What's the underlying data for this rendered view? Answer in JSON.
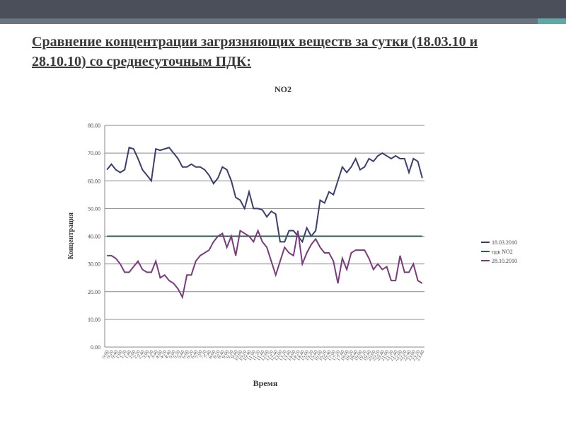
{
  "slide_title": "Сравнение концентрации загрязняющих веществ за сутки (18.03.10 и 28.10.10) со среднесуточным ПДК:",
  "chart_data": {
    "type": "line",
    "title": "NO2",
    "x_label": "Время",
    "y_label": "Концентрация",
    "categories": [
      "0:00",
      "0:20",
      "0:40",
      "1:00",
      "1:20",
      "1:40",
      "2:00",
      "2:20",
      "2:40",
      "3:00",
      "3:20",
      "3:40",
      "4:00",
      "4:20",
      "4:40",
      "5:00",
      "5:20",
      "5:40",
      "6:00",
      "6:20",
      "6:40",
      "7:00",
      "7:20",
      "7:40",
      "8:00",
      "8:20",
      "8:40",
      "9:00",
      "9:20",
      "9:40",
      "10:00",
      "10:20",
      "10:40",
      "11:00",
      "11:20",
      "11:40",
      "12:00",
      "12:20",
      "12:40",
      "13:00",
      "13:20",
      "13:40",
      "14:00",
      "14:20",
      "14:40",
      "15:00",
      "15:20",
      "15:40",
      "16:00",
      "16:20",
      "16:40",
      "17:00",
      "17:20",
      "17:40",
      "18:00",
      "18:20",
      "18:40",
      "19:00",
      "19:20",
      "19:40",
      "20:00",
      "20:20",
      "20:40",
      "21:00",
      "21:20",
      "21:40",
      "22:00",
      "22:20",
      "22:40",
      "23:00",
      "23:20",
      "23:40"
    ],
    "series": [
      {
        "name": "18.03.2010",
        "color": "#3b3f6e",
        "values": [
          64,
          66,
          64,
          63,
          64,
          72,
          71.5,
          68,
          64,
          62,
          60,
          71.5,
          71,
          71.5,
          72,
          70,
          68,
          65,
          65,
          66,
          65,
          65,
          64,
          62,
          59,
          61,
          65,
          64,
          60,
          54,
          53,
          50,
          56,
          50,
          50,
          49.5,
          47,
          49,
          48,
          38,
          38,
          42,
          42,
          40,
          38,
          43,
          40,
          42,
          53,
          52,
          56,
          55,
          60,
          65,
          63,
          65,
          68,
          64,
          65,
          68,
          67,
          69,
          70,
          69,
          68,
          69,
          68,
          68,
          63,
          68,
          67,
          61
        ]
      },
      {
        "name": "пдк NO2",
        "color": "#2f5d5a",
        "values": [
          40,
          40,
          40,
          40,
          40,
          40,
          40,
          40,
          40,
          40,
          40,
          40,
          40,
          40,
          40,
          40,
          40,
          40,
          40,
          40,
          40,
          40,
          40,
          40,
          40,
          40,
          40,
          40,
          40,
          40,
          40,
          40,
          40,
          40,
          40,
          40,
          40,
          40,
          40,
          40,
          40,
          40,
          40,
          40,
          40,
          40,
          40,
          40,
          40,
          40,
          40,
          40,
          40,
          40,
          40,
          40,
          40,
          40,
          40,
          40,
          40,
          40,
          40,
          40,
          40,
          40,
          40,
          40,
          40,
          40,
          40,
          40
        ]
      },
      {
        "name": "28.10.2010",
        "color": "#7b3b7e",
        "values": [
          33,
          33,
          32,
          30,
          27,
          27,
          29,
          31,
          28,
          27,
          27,
          31,
          25,
          26,
          24,
          23,
          21,
          18,
          26,
          26,
          31,
          33,
          34,
          35,
          38,
          40,
          41,
          36,
          40,
          33,
          42,
          41,
          40,
          38,
          42,
          38,
          36,
          31,
          26,
          31,
          36,
          34,
          33,
          42,
          30,
          34,
          37,
          39,
          36,
          34,
          34,
          31,
          23,
          32,
          28,
          34,
          35,
          35,
          35,
          32,
          28,
          30,
          28,
          29,
          24,
          24,
          33,
          27,
          27,
          30,
          24,
          23
        ]
      }
    ],
    "ylim": [
      0,
      80
    ],
    "yticks": [
      {
        "value": 0,
        "label": "0.00"
      },
      {
        "value": 10,
        "label": "10.00"
      },
      {
        "value": 20,
        "label": "20.00"
      },
      {
        "value": 30,
        "label": "30.00"
      },
      {
        "value": 40,
        "label": "40.00"
      },
      {
        "value": 50,
        "label": "50.00"
      },
      {
        "value": 60,
        "label": "60.00"
      },
      {
        "value": 70,
        "label": "70.00"
      },
      {
        "value": 80,
        "label": "80.00"
      }
    ],
    "grid": true,
    "legend": "right"
  }
}
